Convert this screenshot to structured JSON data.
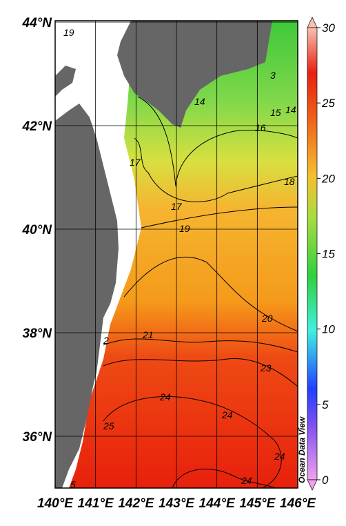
{
  "map": {
    "lat_ticks": [
      {
        "value": 44,
        "label": "44°N"
      },
      {
        "value": 42,
        "label": "42°N"
      },
      {
        "value": 40,
        "label": "40°N"
      },
      {
        "value": 38,
        "label": "38°N"
      },
      {
        "value": 36,
        "label": "36°N"
      }
    ],
    "lon_ticks": [
      {
        "value": 140,
        "label": "140°E"
      },
      {
        "value": 141,
        "label": "141°E"
      },
      {
        "value": 142,
        "label": "142°E"
      },
      {
        "value": 143,
        "label": "143°E"
      },
      {
        "value": 144,
        "label": "144°E"
      },
      {
        "value": 145,
        "label": "145°E"
      },
      {
        "value": 146,
        "label": "146°E"
      }
    ],
    "colorbar": {
      "range": [
        0,
        30
      ],
      "ticks": [
        0,
        5,
        10,
        15,
        20,
        25,
        30
      ]
    },
    "contour_labels": [
      "19",
      "3",
      "14",
      "15",
      "14",
      "16",
      "17",
      "18",
      "17",
      "19",
      "20",
      "21",
      "2",
      "23",
      "24",
      "24",
      "25",
      "24",
      "24",
      "5"
    ],
    "watermark": "Ocean Data View"
  }
}
